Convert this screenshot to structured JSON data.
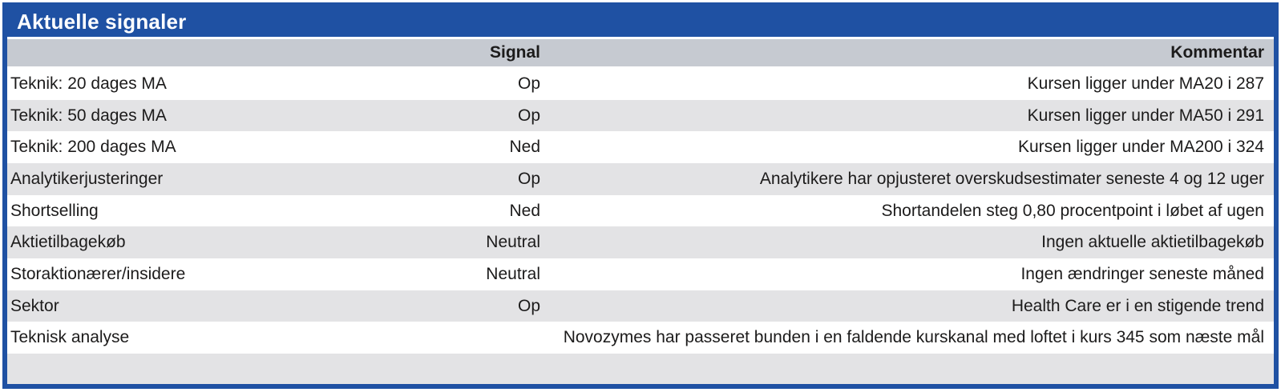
{
  "panel": {
    "title": "Aktuelle signaler"
  },
  "table": {
    "columns": {
      "signal": "Signal",
      "comment": "Kommentar"
    },
    "rows": [
      {
        "label": "Teknik: 20 dages MA",
        "signal": "Op",
        "comment": "Kursen ligger under MA20 i 287"
      },
      {
        "label": "Teknik: 50 dages MA",
        "signal": "Op",
        "comment": "Kursen ligger under MA50 i 291"
      },
      {
        "label": "Teknik: 200 dages MA",
        "signal": "Ned",
        "comment": "Kursen ligger under MA200 i 324"
      },
      {
        "label": "Analytikerjusteringer",
        "signal": "Op",
        "comment": "Analytikere har opjusteret overskudsestimater seneste 4 og 12 uger"
      },
      {
        "label": "Shortselling",
        "signal": "Ned",
        "comment": "Shortandelen steg 0,80 procentpoint i løbet af ugen"
      },
      {
        "label": "Aktietilbagekøb",
        "signal": "Neutral",
        "comment": "Ingen aktuelle aktietilbagekøb"
      },
      {
        "label": "Storaktionærer/insidere",
        "signal": "Neutral",
        "comment": "Ingen ændringer seneste måned"
      },
      {
        "label": "Sektor",
        "signal": "Op",
        "comment": "Health Care er i en stigende trend"
      },
      {
        "label": "Teknisk analyse",
        "signal": "",
        "comment": "Novozymes har passeret bunden i en faldende kurskanal med loftet i kurs 345 som næste mål"
      }
    ]
  },
  "colors": {
    "accent_blue": "#1F51A3",
    "header_gray": "#C6CAD1",
    "alt_row_gray": "#E3E3E5",
    "text": "#1C1B1B"
  }
}
